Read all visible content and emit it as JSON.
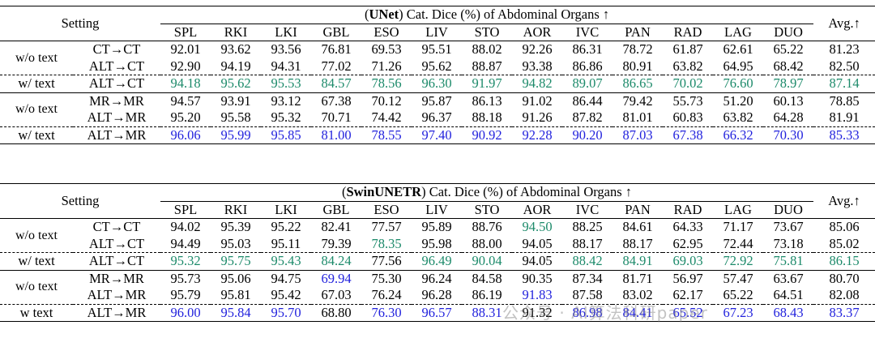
{
  "columns": [
    "SPL",
    "RKI",
    "LKI",
    "GBL",
    "ESO",
    "LIV",
    "STO",
    "AOR",
    "IVC",
    "PAN",
    "RAD",
    "LAG",
    "DUO"
  ],
  "avg_label": "Avg.↑",
  "setting_label": "Setting",
  "colors": {
    "green": "#1c8a6a",
    "blue": "#2222dd"
  },
  "tables": [
    {
      "model": "UNet",
      "caption_rest": " Cat. Dice (%) of Abdominal Organs ↑",
      "rows": [
        {
          "group": "w/o text",
          "task": "CT→CT",
          "values": [
            "92.01",
            "93.62",
            "93.56",
            "76.81",
            "69.53",
            "95.51",
            "88.02",
            "92.26",
            "86.31",
            "78.72",
            "61.87",
            "62.61",
            "65.22"
          ],
          "avg": "81.23",
          "styles": [
            "",
            "",
            "",
            "",
            "",
            "",
            "",
            "",
            "",
            "",
            "",
            "",
            ""
          ],
          "avg_style": ""
        },
        {
          "group": "",
          "task": "ALT→CT",
          "values": [
            "92.90",
            "94.19",
            "94.31",
            "77.02",
            "71.26",
            "95.62",
            "88.87",
            "93.38",
            "86.86",
            "80.91",
            "63.82",
            "64.95",
            "68.42"
          ],
          "avg": "82.50",
          "styles": [
            "",
            "",
            "",
            "",
            "",
            "",
            "",
            "",
            "",
            "",
            "",
            "",
            ""
          ],
          "avg_style": ""
        },
        {
          "group": "w/ text",
          "task": "ALT→CT",
          "values": [
            "94.18",
            "95.62",
            "95.53",
            "84.57",
            "78.56",
            "96.30",
            "91.97",
            "94.82",
            "89.07",
            "86.65",
            "70.02",
            "76.60",
            "78.97"
          ],
          "avg": "87.14",
          "styles": [
            "green",
            "green",
            "green",
            "green",
            "green",
            "green",
            "green",
            "green",
            "green",
            "green",
            "green",
            "green",
            "green"
          ],
          "avg_style": "green"
        },
        {
          "group": "w/o text",
          "task": "MR→MR",
          "values": [
            "94.57",
            "93.91",
            "93.12",
            "67.38",
            "70.12",
            "95.87",
            "86.13",
            "91.02",
            "86.44",
            "79.42",
            "55.73",
            "51.20",
            "60.13"
          ],
          "avg": "78.85",
          "styles": [
            "",
            "",
            "",
            "",
            "",
            "",
            "",
            "",
            "",
            "",
            "",
            "",
            ""
          ],
          "avg_style": ""
        },
        {
          "group": "",
          "task": "ALT→MR",
          "values": [
            "95.20",
            "95.58",
            "95.32",
            "70.71",
            "74.42",
            "96.37",
            "88.18",
            "91.26",
            "87.82",
            "81.01",
            "60.83",
            "63.82",
            "64.28"
          ],
          "avg": "81.91",
          "styles": [
            "",
            "",
            "",
            "",
            "",
            "",
            "",
            "",
            "",
            "",
            "",
            "",
            ""
          ],
          "avg_style": ""
        },
        {
          "group": "w/ text",
          "task": "ALT→MR",
          "values": [
            "96.06",
            "95.99",
            "95.85",
            "81.00",
            "78.55",
            "97.40",
            "90.92",
            "92.28",
            "90.20",
            "87.03",
            "67.38",
            "66.32",
            "70.30"
          ],
          "avg": "85.33",
          "styles": [
            "blue",
            "blue",
            "blue",
            "blue",
            "blue",
            "blue",
            "blue",
            "blue",
            "blue",
            "blue",
            "blue",
            "blue",
            "blue"
          ],
          "avg_style": "blue"
        }
      ]
    },
    {
      "model": "SwinUNETR",
      "caption_rest": " Cat. Dice (%) of Abdominal Organs ↑",
      "rows": [
        {
          "group": "w/o text",
          "task": "CT→CT",
          "values": [
            "94.02",
            "95.39",
            "95.22",
            "82.41",
            "77.57",
            "95.89",
            "88.76",
            "94.50",
            "88.25",
            "84.61",
            "64.33",
            "71.17",
            "73.67"
          ],
          "avg": "85.06",
          "styles": [
            "",
            "",
            "",
            "",
            "",
            "",
            "",
            "green",
            "",
            "",
            "",
            "",
            ""
          ],
          "avg_style": ""
        },
        {
          "group": "",
          "task": "ALT→CT",
          "values": [
            "94.49",
            "95.03",
            "95.11",
            "79.39",
            "78.35",
            "95.98",
            "88.00",
            "94.05",
            "88.17",
            "88.17",
            "62.95",
            "72.44",
            "73.18"
          ],
          "avg": "85.02",
          "styles": [
            "",
            "",
            "",
            "",
            "green",
            "",
            "",
            "",
            "",
            "",
            "",
            "",
            ""
          ],
          "avg_style": ""
        },
        {
          "group": "w/ text",
          "task": "ALT→CT",
          "values": [
            "95.32",
            "95.75",
            "95.43",
            "84.24",
            "77.56",
            "96.49",
            "90.04",
            "94.05",
            "88.42",
            "84.91",
            "69.03",
            "72.92",
            "75.81"
          ],
          "avg": "86.15",
          "styles": [
            "green",
            "green",
            "green",
            "green",
            "",
            "green",
            "green",
            "",
            "green",
            "green",
            "green",
            "green",
            "green"
          ],
          "avg_style": "green"
        },
        {
          "group": "w/o text",
          "task": "MR→MR",
          "values": [
            "95.73",
            "95.06",
            "94.75",
            "69.94",
            "75.30",
            "96.24",
            "84.58",
            "90.35",
            "87.34",
            "81.71",
            "56.97",
            "57.47",
            "63.67"
          ],
          "avg": "80.70",
          "styles": [
            "",
            "",
            "",
            "blue",
            "",
            "",
            "",
            "",
            "",
            "",
            "",
            "",
            ""
          ],
          "avg_style": ""
        },
        {
          "group": "",
          "task": "ALT→MR",
          "values": [
            "95.79",
            "95.81",
            "95.42",
            "67.03",
            "76.24",
            "96.28",
            "86.19",
            "91.83",
            "87.58",
            "83.02",
            "62.17",
            "65.22",
            "64.51"
          ],
          "avg": "82.08",
          "styles": [
            "",
            "",
            "",
            "",
            "",
            "",
            "",
            "blue",
            "",
            "",
            "",
            "",
            ""
          ],
          "avg_style": ""
        },
        {
          "group": "w text",
          "task": "ALT→MR",
          "values": [
            "96.00",
            "95.84",
            "95.70",
            "68.80",
            "76.30",
            "96.57",
            "88.31",
            "91.32",
            "86.98",
            "84.41",
            "65.52",
            "67.23",
            "68.43"
          ],
          "avg": "83.37",
          "styles": [
            "blue",
            "blue",
            "blue",
            "",
            "blue",
            "blue",
            "blue",
            "",
            "blue",
            "blue",
            "blue",
            "blue",
            "blue"
          ],
          "avg_style": "blue"
        }
      ]
    }
  ],
  "watermark": "公众号 · AI算法科研paper"
}
